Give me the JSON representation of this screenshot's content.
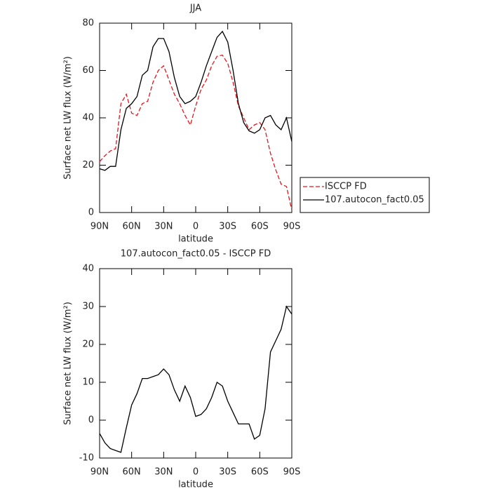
{
  "chart_data": [
    {
      "type": "line",
      "title": "JJA",
      "xlabel": "latitude",
      "ylabel": "Surface net LW flux (W/m²)",
      "x": [
        90,
        85,
        80,
        75,
        70,
        65,
        60,
        55,
        50,
        45,
        40,
        35,
        30,
        25,
        20,
        15,
        10,
        5,
        0,
        -5,
        -10,
        -15,
        -20,
        -25,
        -30,
        -35,
        -40,
        -45,
        -50,
        -55,
        -60,
        -65,
        -70,
        -75,
        -80,
        -85,
        -90
      ],
      "series": [
        {
          "name": "ISCCP FD",
          "color": "#e8141c",
          "dash": true,
          "values": [
            21.5,
            24,
            26,
            27,
            46,
            50,
            42,
            41,
            46,
            47,
            55,
            60,
            62,
            56,
            50,
            46,
            41,
            37,
            45,
            52,
            56,
            62,
            66,
            66.5,
            63,
            55,
            45,
            40,
            35,
            37,
            38,
            35,
            25,
            18,
            12,
            11,
            1
          ]
        },
        {
          "name": "107.autocon_fact0.05",
          "color": "#000000",
          "dash": false,
          "values": [
            18.5,
            17.8,
            19.5,
            19.5,
            35,
            44,
            46,
            49,
            58,
            60,
            70,
            73.5,
            73.5,
            68,
            57,
            49,
            46,
            47,
            49,
            55,
            62,
            68,
            74,
            76.5,
            72,
            60,
            46,
            38,
            34.5,
            33.5,
            35,
            40,
            41,
            37,
            35,
            40,
            30
          ]
        }
      ],
      "xlim": [
        90,
        -90
      ],
      "xticks": [
        {
          "value": 90,
          "label": "90N"
        },
        {
          "value": 60,
          "label": "60N"
        },
        {
          "value": 30,
          "label": "30N"
        },
        0,
        {
          "value": -30,
          "label": "30S"
        },
        {
          "value": -60,
          "label": "60S"
        },
        {
          "value": -90,
          "label": "90S"
        }
      ],
      "ylim": [
        0,
        80
      ],
      "yticks": [
        0,
        20,
        40,
        60,
        80
      ],
      "legend": "right"
    },
    {
      "type": "line",
      "title": "107.autocon_fact0.05 - ISCCP FD",
      "xlabel": "latitude",
      "ylabel": "Surface net LW flux (W/m²)",
      "x": [
        90,
        85,
        80,
        75,
        70,
        65,
        60,
        55,
        50,
        45,
        40,
        35,
        30,
        25,
        20,
        15,
        10,
        5,
        0,
        -5,
        -10,
        -15,
        -20,
        -25,
        -30,
        -35,
        -40,
        -45,
        -50,
        -55,
        -60,
        -65,
        -70,
        -75,
        -80,
        -85,
        -90
      ],
      "series": [
        {
          "color": "#000000",
          "dash": false,
          "values": [
            -3.5,
            -6,
            -7.5,
            -8,
            -8.5,
            -2,
            4,
            7,
            11,
            11,
            11.5,
            12,
            13.5,
            12,
            8,
            5,
            9,
            6,
            1,
            1.5,
            3,
            6,
            10,
            9,
            5,
            2,
            -1,
            -1,
            -1,
            -5,
            -4,
            3,
            18,
            21,
            24,
            30,
            28
          ]
        }
      ],
      "xlim": [
        90,
        -90
      ],
      "xticks": [
        {
          "value": 90,
          "label": "90N"
        },
        {
          "value": 60,
          "label": "60N"
        },
        {
          "value": 30,
          "label": "30N"
        },
        0,
        {
          "value": -30,
          "label": "30S"
        },
        {
          "value": -60,
          "label": "60S"
        },
        {
          "value": -90,
          "label": "90S"
        }
      ],
      "ylim": [
        -10,
        40
      ],
      "yticks": [
        -10,
        0,
        10,
        20,
        30,
        40
      ]
    }
  ]
}
